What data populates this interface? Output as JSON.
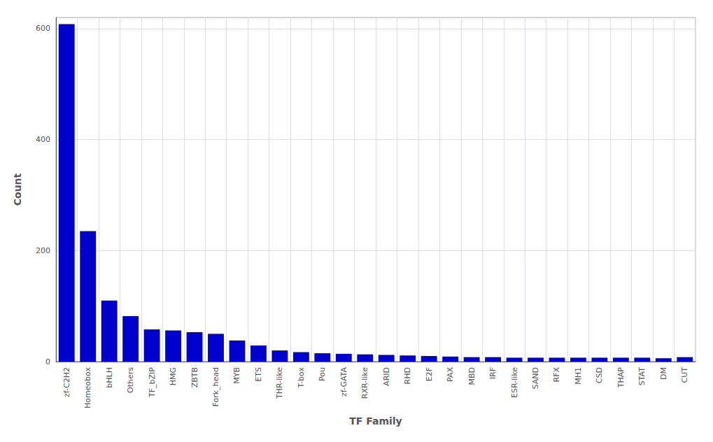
{
  "chart_data": {
    "type": "bar",
    "categories": [
      "zf-C2H2",
      "Homeobox",
      "bHLH",
      "Others",
      "TF_bZIP",
      "HMG",
      "ZBTB",
      "Fork_head",
      "MYB",
      "ETS",
      "THR-like",
      "T-box",
      "Pou",
      "zf-GATA",
      "RXR-like",
      "ARID",
      "RHD",
      "E2F",
      "PAX",
      "MBD",
      "IRF",
      "ESR-like",
      "SAND",
      "RFX",
      "MH1",
      "CSD",
      "THAP",
      "STAT",
      "DM",
      "CUT"
    ],
    "values": [
      608,
      235,
      110,
      82,
      58,
      56,
      53,
      50,
      38,
      29,
      20,
      17,
      15,
      14,
      13,
      12,
      11,
      10,
      9,
      8,
      8,
      7,
      7,
      7,
      7,
      7,
      7,
      7,
      6,
      8
    ],
    "color": "#0000cc",
    "xlabel": "TF Family",
    "ylabel": "Count",
    "ylim": [
      0,
      620
    ],
    "yticks": [
      0,
      200,
      400,
      600
    ],
    "grid": true
  }
}
